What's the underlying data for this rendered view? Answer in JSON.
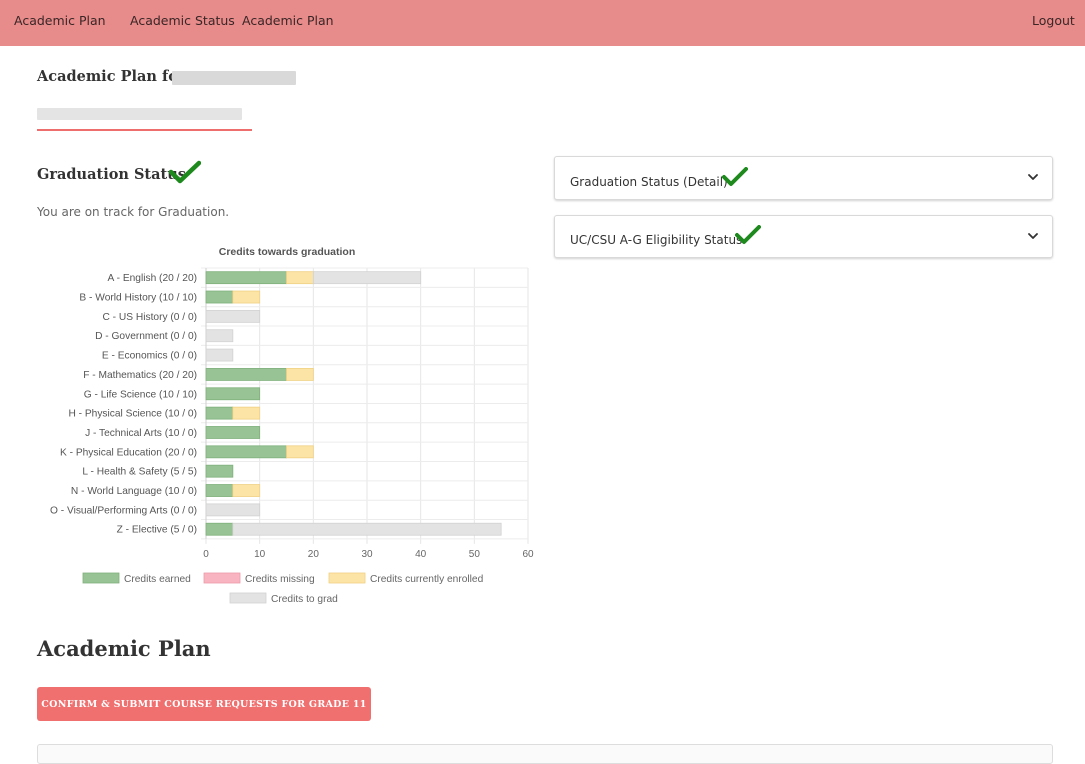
{
  "nav": {
    "brand": "Academic Plan",
    "links": [
      "Academic Status",
      "Academic Plan"
    ],
    "logout": "Logout"
  },
  "header": {
    "title_prefix": "Academic Plan for"
  },
  "graduation": {
    "title": "Graduation Status",
    "status_text": "You are on track for Graduation."
  },
  "accordions": [
    {
      "title": "Graduation Status (Detail)"
    },
    {
      "title": "UC/CSU A-G Eligibility Status"
    }
  ],
  "plan": {
    "title": "Academic Plan",
    "submit_label": "CONFIRM & SUBMIT COURSE REQUESTS FOR GRADE 11"
  },
  "colors": {
    "navbar": "#e88b8b",
    "check": "#1e8a1e",
    "earned": "#98c495",
    "missing": "#f9b4c2",
    "enrolled": "#fce4a6",
    "to_grad": "#e3e3e3",
    "button": "#f07070"
  },
  "chart_data": {
    "type": "bar",
    "orientation": "horizontal",
    "stacked": true,
    "title": "Credits towards graduation",
    "categories": [
      "A - English (20 / 20)",
      "B - World History (10 / 10)",
      "C - US History (0 / 0)",
      "D - Government (0 / 0)",
      "E - Economics (0 / 0)",
      "F - Mathematics (20 / 20)",
      "G - Life Science (10 / 10)",
      "H - Physical Science (10 / 0)",
      "J - Technical Arts (10 / 0)",
      "K - Physical Education (20 / 0)",
      "L - Health & Safety (5 / 5)",
      "N - World Language (10 / 0)",
      "O - Visual/Performing Arts (0 / 0)",
      "Z - Elective (5 / 0)"
    ],
    "series": [
      {
        "name": "Credits earned",
        "values": [
          15,
          5,
          0,
          0,
          0,
          15,
          10,
          5,
          10,
          15,
          5,
          5,
          0,
          5
        ]
      },
      {
        "name": "Credits missing",
        "values": [
          0,
          0,
          0,
          0,
          0,
          0,
          0,
          0,
          0,
          0,
          0,
          0,
          0,
          0
        ]
      },
      {
        "name": "Credits currently enrolled",
        "values": [
          5,
          5,
          0,
          0,
          0,
          5,
          0,
          5,
          0,
          5,
          0,
          5,
          0,
          0
        ]
      },
      {
        "name": "Credits to grad",
        "values": [
          20,
          0,
          10,
          5,
          5,
          0,
          0,
          0,
          0,
          0,
          0,
          0,
          10,
          50
        ]
      }
    ],
    "xlim": [
      0,
      60
    ],
    "xticks": [
      0,
      10,
      20,
      30,
      40,
      50,
      60
    ],
    "grid": true,
    "legend": "bottom"
  }
}
